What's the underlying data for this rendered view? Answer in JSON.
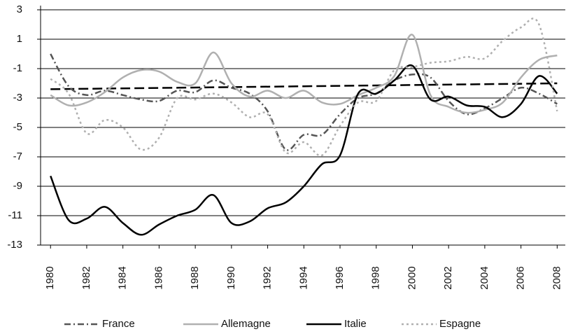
{
  "chart_data": {
    "type": "line",
    "x": [
      1980,
      1981,
      1982,
      1983,
      1984,
      1985,
      1986,
      1987,
      1988,
      1989,
      1990,
      1991,
      1992,
      1993,
      1994,
      1995,
      1996,
      1997,
      1998,
      1999,
      2000,
      2001,
      2002,
      2003,
      2004,
      2005,
      2006,
      2007,
      2008
    ],
    "series": [
      {
        "name": "France",
        "color": "#555555",
        "style": "dashdot",
        "values": [
          0,
          -2.2,
          -2.8,
          -2.5,
          -2.8,
          -3.1,
          -3.2,
          -2.5,
          -2.6,
          -1.8,
          -2.3,
          -2.7,
          -3.9,
          -6.5,
          -5.5,
          -5.5,
          -4.1,
          -3.0,
          -2.7,
          -1.8,
          -1.4,
          -1.6,
          -3.2,
          -4.1,
          -3.7,
          -3.0,
          -2.3,
          -2.7,
          -3.4
        ]
      },
      {
        "name": "Allemagne",
        "color": "#b0b0b0",
        "style": "solid",
        "values": [
          -2.8,
          -3.5,
          -3.3,
          -2.6,
          -1.6,
          -1.1,
          -1.2,
          -1.9,
          -2.0,
          0.1,
          -2.0,
          -2.9,
          -2.5,
          -3.0,
          -2.5,
          -3.3,
          -3.4,
          -2.8,
          -2.3,
          -1.5,
          1.3,
          -2.8,
          -3.6,
          -4.0,
          -3.8,
          -3.3,
          -1.6,
          -0.4,
          -0.1
        ]
      },
      {
        "name": "Italie",
        "color": "#000000",
        "style": "solid",
        "values": [
          -8.3,
          -11.3,
          -11.2,
          -10.4,
          -11.5,
          -12.3,
          -11.6,
          -11.0,
          -10.6,
          -9.6,
          -11.5,
          -11.4,
          -10.5,
          -10.1,
          -9.0,
          -7.5,
          -6.9,
          -2.7,
          -2.7,
          -1.8,
          -0.8,
          -3.1,
          -2.9,
          -3.5,
          -3.6,
          -4.3,
          -3.4,
          -1.5,
          -2.7
        ]
      },
      {
        "name": "Espagne",
        "color": "#b0b0b0",
        "style": "dotted",
        "values": [
          -1.7,
          -2.7,
          -5.4,
          -4.5,
          -5.0,
          -6.5,
          -5.7,
          -3.0,
          -3.1,
          -2.7,
          -3.3,
          -4.3,
          -4.1,
          -6.7,
          -6.0,
          -6.9,
          -4.9,
          -3.3,
          -3.2,
          -1.1,
          -0.9,
          -0.6,
          -0.5,
          -0.2,
          -0.3,
          0.9,
          1.8,
          2.0,
          -3.9
        ]
      }
    ],
    "trend_line": {
      "x": [
        1980,
        2008
      ],
      "values": [
        -2.4,
        -2.0
      ],
      "color": "#000000",
      "style": "dashed"
    },
    "xlim": [
      1979.45,
      2008.45
    ],
    "xticks": [
      1980,
      1982,
      1984,
      1986,
      1988,
      1990,
      1992,
      1994,
      1996,
      1998,
      2000,
      2002,
      2004,
      2006,
      2008
    ],
    "ylim": [
      -13,
      3
    ],
    "yticks": [
      -13,
      -11,
      -9,
      -7,
      -5,
      -3,
      -1,
      1,
      3
    ],
    "grid": true,
    "legend": "bottom"
  }
}
